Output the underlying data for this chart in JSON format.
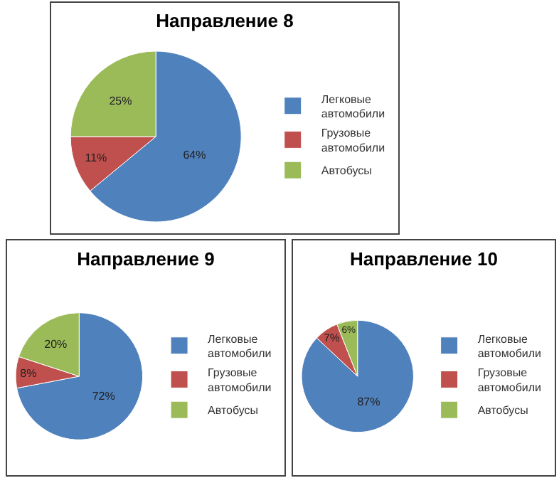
{
  "chart_data": [
    {
      "type": "pie",
      "title": "Направление 8",
      "categories": [
        "Легковые автомобили",
        "Грузовые автомобили",
        "Автобусы"
      ],
      "values": [
        64,
        11,
        25
      ],
      "colors": [
        "#4f81bd",
        "#c0504d",
        "#9bbb59"
      ],
      "value_labels": [
        "64%",
        "11%",
        "25%"
      ],
      "legend": "right"
    },
    {
      "type": "pie",
      "title": "Направление 9",
      "categories": [
        "Легковые автомобили",
        "Грузовые автомобили",
        "Автобусы"
      ],
      "values": [
        72,
        8,
        20
      ],
      "colors": [
        "#4f81bd",
        "#c0504d",
        "#9bbb59"
      ],
      "value_labels": [
        "72%",
        "8%",
        "20%"
      ],
      "legend": "right"
    },
    {
      "type": "pie",
      "title": "Направление 10",
      "categories": [
        "Легковые автомобили",
        "Грузовые автомобили",
        "Автобусы"
      ],
      "values": [
        87,
        7,
        6
      ],
      "colors": [
        "#4f81bd",
        "#c0504d",
        "#9bbb59"
      ],
      "value_labels": [
        "87%",
        "7%",
        "6%"
      ],
      "legend": "right"
    }
  ]
}
